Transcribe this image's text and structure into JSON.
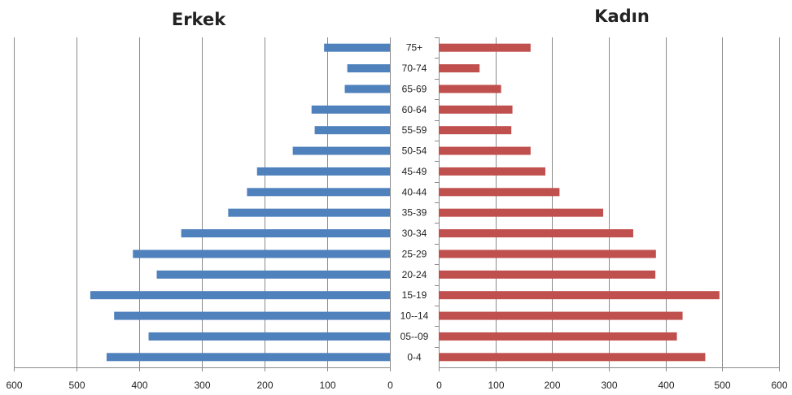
{
  "chart_data": [
    {
      "type": "bar",
      "orientation": "horizontal",
      "direction": "reversed",
      "title": "Erkek",
      "xlabel": "",
      "ylabel": "",
      "xlim": [
        0,
        600
      ],
      "xticks": [
        600,
        500,
        400,
        300,
        200,
        100,
        0
      ],
      "grid": true,
      "color": "#4f81bd",
      "categories": [
        "75+",
        "70-74",
        "65-69",
        "60-64",
        "55-59",
        "50-54",
        "45-49",
        "40-44",
        "35-39",
        "30-34",
        "25-29",
        "20-24",
        "15-19",
        "10--14",
        "05--09",
        "0-4"
      ],
      "values": [
        105,
        68,
        72,
        125,
        120,
        155,
        212,
        228,
        258,
        333,
        410,
        372,
        478,
        440,
        385,
        452
      ]
    },
    {
      "type": "bar",
      "orientation": "horizontal",
      "title": "Kadın",
      "xlabel": "",
      "ylabel": "",
      "xlim": [
        0,
        600
      ],
      "xticks": [
        0,
        100,
        200,
        300,
        400,
        500,
        600
      ],
      "grid": true,
      "color": "#c0504d",
      "categories": [
        "75+",
        "70-74",
        "65-69",
        "60-64",
        "55-59",
        "50-54",
        "45-49",
        "40-44",
        "35-39",
        "30-34",
        "25-29",
        "20-24",
        "15-19",
        "10--14",
        "05--09",
        "0-4"
      ],
      "values": [
        162,
        72,
        110,
        130,
        128,
        162,
        188,
        213,
        290,
        343,
        383,
        382,
        495,
        430,
        420,
        470
      ]
    }
  ]
}
